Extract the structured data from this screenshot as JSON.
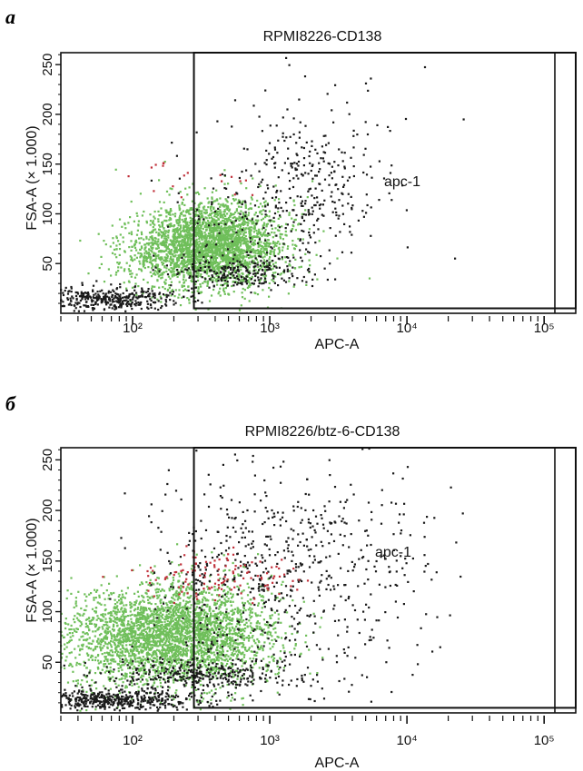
{
  "figure": {
    "panels": [
      {
        "letter": "a",
        "title": "RPMI8226-CD138",
        "gate_label": "apc-1",
        "xlabel": "APC-A",
        "ylabel": "FSA-A (× 1.000)"
      },
      {
        "letter": "б",
        "title": "RPMI8226/btz-6-CD138",
        "gate_label": "apc-1",
        "xlabel": "APC-A",
        "ylabel": "FSA-A (× 1.000)"
      }
    ]
  },
  "chart_data": [
    {
      "type": "scatter",
      "title": "RPMI8226-CD138",
      "xlabel": "APC-A",
      "ylabel": "FSA-A (× 1.000)",
      "x_scale": "log",
      "xlim": [
        30,
        170000
      ],
      "ylim": [
        0,
        262
      ],
      "x_ticks": [
        100,
        1000,
        10000,
        100000
      ],
      "x_tick_labels": [
        "10²",
        "10³",
        "10⁴",
        "10⁵"
      ],
      "y_ticks": [
        50,
        100,
        150,
        200,
        250
      ],
      "y_tick_labels": [
        "50",
        "100",
        "150",
        "200",
        "250"
      ],
      "gate": {
        "label": "apc-1",
        "x_min": 280,
        "x_max": 170000,
        "y_min": 5,
        "y_max": 262
      },
      "grid": false,
      "series": [
        {
          "color": "#6fbf5a",
          "seed": 11,
          "clusters": [
            {
              "count": 2400,
              "cx": 2.62,
              "cy": 70,
              "sx": 0.24,
              "sy": 22
            },
            {
              "count": 600,
              "cx": 2.3,
              "cy": 60,
              "sx": 0.22,
              "sy": 18
            }
          ]
        },
        {
          "color": "#1a1a1a",
          "seed": 23,
          "clusters": [
            {
              "count": 420,
              "cx": 1.75,
              "cy": 14,
              "sx": 0.3,
              "sy": 6
            },
            {
              "count": 220,
              "cx": 2.75,
              "cy": 40,
              "sx": 0.25,
              "sy": 8
            },
            {
              "count": 260,
              "cx": 3.25,
              "cy": 120,
              "sx": 0.25,
              "sy": 40
            },
            {
              "count": 60,
              "cx": 3.6,
              "cy": 150,
              "sx": 0.4,
              "sy": 55
            },
            {
              "count": 90,
              "cx": 2.9,
              "cy": 110,
              "sx": 0.3,
              "sy": 35
            }
          ]
        },
        {
          "color": "#c0303a",
          "seed": 37,
          "clusters": [
            {
              "count": 18,
              "cx": 2.5,
              "cy": 132,
              "sx": 0.25,
              "sy": 10
            }
          ]
        }
      ]
    },
    {
      "type": "scatter",
      "title": "RPMI8226/btz-6-CD138",
      "xlabel": "APC-A",
      "ylabel": "FSA-A (× 1.000)",
      "x_scale": "log",
      "xlim": [
        30,
        170000
      ],
      "ylim": [
        0,
        262
      ],
      "x_ticks": [
        100,
        1000,
        10000,
        100000
      ],
      "x_tick_labels": [
        "10²",
        "10³",
        "10⁴",
        "10⁵"
      ],
      "y_ticks": [
        50,
        100,
        150,
        200,
        250
      ],
      "y_tick_labels": [
        "50",
        "100",
        "150",
        "200",
        "250"
      ],
      "gate": {
        "label": "apc-1",
        "x_min": 280,
        "x_max": 170000,
        "y_min": 5,
        "y_max": 262
      },
      "grid": false,
      "series": [
        {
          "color": "#6fbf5a",
          "seed": 41,
          "clusters": [
            {
              "count": 2800,
              "cx": 2.35,
              "cy": 78,
              "sx": 0.35,
              "sy": 25
            },
            {
              "count": 500,
              "cx": 1.9,
              "cy": 70,
              "sx": 0.3,
              "sy": 22
            }
          ]
        },
        {
          "color": "#1a1a1a",
          "seed": 53,
          "clusters": [
            {
              "count": 500,
              "cx": 1.9,
              "cy": 12,
              "sx": 0.35,
              "sy": 6
            },
            {
              "count": 300,
              "cx": 2.5,
              "cy": 38,
              "sx": 0.35,
              "sy": 8
            },
            {
              "count": 520,
              "cx": 3.0,
              "cy": 130,
              "sx": 0.45,
              "sy": 55
            },
            {
              "count": 160,
              "cx": 3.5,
              "cy": 150,
              "sx": 0.45,
              "sy": 55
            }
          ]
        },
        {
          "color": "#c0303a",
          "seed": 67,
          "clusters": [
            {
              "count": 120,
              "cx": 2.6,
              "cy": 133,
              "sx": 0.28,
              "sy": 12
            }
          ]
        }
      ]
    }
  ]
}
